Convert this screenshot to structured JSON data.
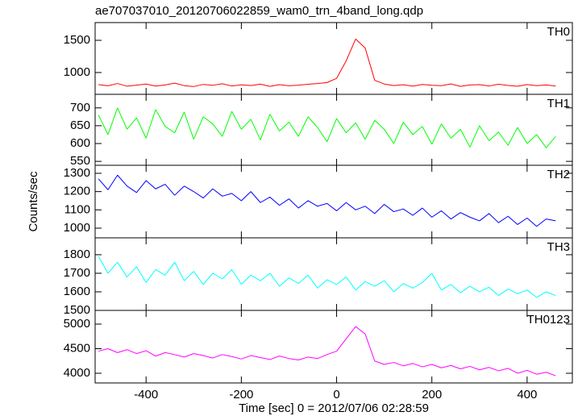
{
  "title": "ae707037010_20120706022859_wam0_trn_4band_long.qdp",
  "xlabel": "Time [sec] 0 = 2012/07/06 02:28:59",
  "ylabel": "Counts/sec",
  "chart_data": [
    {
      "type": "line",
      "label": "TH0",
      "color": "#ff0000",
      "ylim": [
        662,
        1775
      ],
      "yticks": [
        1000,
        1500
      ],
      "xlim": [
        -507,
        495
      ],
      "xticks": [
        -400,
        -200,
        0,
        200,
        400
      ],
      "x": [
        -500,
        -480,
        -460,
        -440,
        -420,
        -400,
        -380,
        -360,
        -340,
        -320,
        -300,
        -280,
        -260,
        -240,
        -220,
        -200,
        -180,
        -160,
        -140,
        -120,
        -100,
        -80,
        -60,
        -40,
        -20,
        0,
        20,
        40,
        60,
        80,
        100,
        120,
        140,
        160,
        180,
        200,
        220,
        240,
        260,
        280,
        300,
        320,
        340,
        360,
        380,
        400,
        420,
        440,
        460
      ],
      "values": [
        812,
        795,
        830,
        788,
        805,
        821,
        790,
        808,
        835,
        797,
        783,
        816,
        802,
        826,
        791,
        809,
        798,
        820,
        786,
        812,
        795,
        805,
        818,
        830,
        845,
        910,
        1180,
        1520,
        1380,
        880,
        822,
        798,
        810,
        789,
        815,
        802,
        796,
        823,
        785,
        808,
        812,
        791,
        819,
        800,
        787,
        814,
        796,
        808,
        790
      ]
    },
    {
      "type": "line",
      "label": "TH1",
      "color": "#00ff00",
      "ylim": [
        539,
        738
      ],
      "yticks": [
        550,
        600,
        650,
        700
      ],
      "xlim": [
        -507,
        495
      ],
      "xticks": [
        -400,
        -200,
        0,
        200,
        400
      ],
      "x": [
        -500,
        -480,
        -460,
        -440,
        -420,
        -400,
        -380,
        -360,
        -340,
        -320,
        -300,
        -280,
        -260,
        -240,
        -220,
        -200,
        -180,
        -160,
        -140,
        -120,
        -100,
        -80,
        -60,
        -40,
        -20,
        0,
        20,
        40,
        60,
        80,
        100,
        120,
        140,
        160,
        180,
        200,
        220,
        240,
        260,
        280,
        300,
        320,
        340,
        360,
        380,
        400,
        420,
        440,
        460
      ],
      "values": [
        680,
        625,
        700,
        640,
        672,
        615,
        695,
        648,
        630,
        688,
        612,
        675,
        655,
        620,
        690,
        640,
        668,
        610,
        682,
        635,
        660,
        620,
        675,
        645,
        605,
        670,
        630,
        658,
        612,
        665,
        640,
        600,
        660,
        625,
        648,
        598,
        655,
        615,
        640,
        590,
        650,
        608,
        632,
        595,
        645,
        600,
        625,
        588,
        620
      ]
    },
    {
      "type": "line",
      "label": "TH2",
      "color": "#0000ff",
      "ylim": [
        947,
        1344
      ],
      "yticks": [
        1000,
        1100,
        1200,
        1300
      ],
      "xlim": [
        -507,
        495
      ],
      "xticks": [
        -400,
        -200,
        0,
        200,
        400
      ],
      "x": [
        -500,
        -480,
        -460,
        -440,
        -420,
        -400,
        -380,
        -360,
        -340,
        -320,
        -300,
        -280,
        -260,
        -240,
        -220,
        -200,
        -180,
        -160,
        -140,
        -120,
        -100,
        -80,
        -60,
        -40,
        -20,
        0,
        20,
        40,
        60,
        80,
        100,
        120,
        140,
        160,
        180,
        200,
        220,
        240,
        260,
        280,
        300,
        320,
        340,
        360,
        380,
        400,
        420,
        440,
        460
      ],
      "values": [
        1270,
        1210,
        1290,
        1230,
        1195,
        1260,
        1215,
        1240,
        1180,
        1230,
        1200,
        1165,
        1215,
        1175,
        1190,
        1150,
        1200,
        1140,
        1170,
        1125,
        1160,
        1110,
        1150,
        1120,
        1135,
        1095,
        1140,
        1100,
        1120,
        1080,
        1130,
        1090,
        1105,
        1070,
        1110,
        1060,
        1095,
        1050,
        1085,
        1060,
        1040,
        1080,
        1030,
        1065,
        1020,
        1055,
        1010,
        1050,
        1040
      ]
    },
    {
      "type": "line",
      "label": "TH3",
      "color": "#00ffff",
      "ylim": [
        1500,
        1891
      ],
      "yticks": [
        1500,
        1600,
        1700,
        1800
      ],
      "xlim": [
        -507,
        495
      ],
      "xticks": [
        -400,
        -200,
        0,
        200,
        400
      ],
      "x": [
        -500,
        -480,
        -460,
        -440,
        -420,
        -400,
        -380,
        -360,
        -340,
        -320,
        -300,
        -280,
        -260,
        -240,
        -220,
        -200,
        -180,
        -160,
        -140,
        -120,
        -100,
        -80,
        -60,
        -40,
        -20,
        0,
        20,
        40,
        60,
        80,
        100,
        120,
        140,
        160,
        180,
        200,
        220,
        240,
        260,
        280,
        300,
        320,
        340,
        360,
        380,
        400,
        420,
        440,
        460
      ],
      "values": [
        1790,
        1700,
        1760,
        1680,
        1735,
        1650,
        1720,
        1690,
        1760,
        1660,
        1710,
        1640,
        1700,
        1670,
        1720,
        1640,
        1690,
        1660,
        1700,
        1630,
        1675,
        1645,
        1690,
        1620,
        1665,
        1640,
        1680,
        1610,
        1655,
        1630,
        1660,
        1600,
        1645,
        1620,
        1650,
        1700,
        1610,
        1640,
        1595,
        1630,
        1600,
        1625,
        1580,
        1615,
        1590,
        1610,
        1570,
        1600,
        1580
      ]
    },
    {
      "type": "line",
      "label": "TH0123",
      "color": "#ff00ff",
      "ylim": [
        3803,
        5279
      ],
      "yticks": [
        4000,
        4500,
        5000
      ],
      "xlim": [
        -507,
        495
      ],
      "xticks": [
        -400,
        -200,
        0,
        200,
        400
      ],
      "x": [
        -500,
        -480,
        -460,
        -440,
        -420,
        -400,
        -380,
        -360,
        -340,
        -320,
        -300,
        -280,
        -260,
        -240,
        -220,
        -200,
        -180,
        -160,
        -140,
        -120,
        -100,
        -80,
        -60,
        -40,
        -20,
        0,
        20,
        40,
        60,
        80,
        100,
        120,
        140,
        160,
        180,
        200,
        220,
        240,
        260,
        280,
        300,
        320,
        340,
        360,
        380,
        400,
        420,
        440,
        460
      ],
      "values": [
        4450,
        4500,
        4420,
        4480,
        4400,
        4460,
        4350,
        4420,
        4380,
        4330,
        4400,
        4360,
        4310,
        4380,
        4340,
        4290,
        4360,
        4320,
        4280,
        4350,
        4300,
        4270,
        4330,
        4300,
        4380,
        4450,
        4700,
        4950,
        4800,
        4250,
        4180,
        4220,
        4150,
        4200,
        4130,
        4180,
        4110,
        4160,
        4090,
        4140,
        4070,
        4120,
        4050,
        4100,
        4000,
        4060,
        3980,
        4020,
        3950
      ]
    }
  ]
}
